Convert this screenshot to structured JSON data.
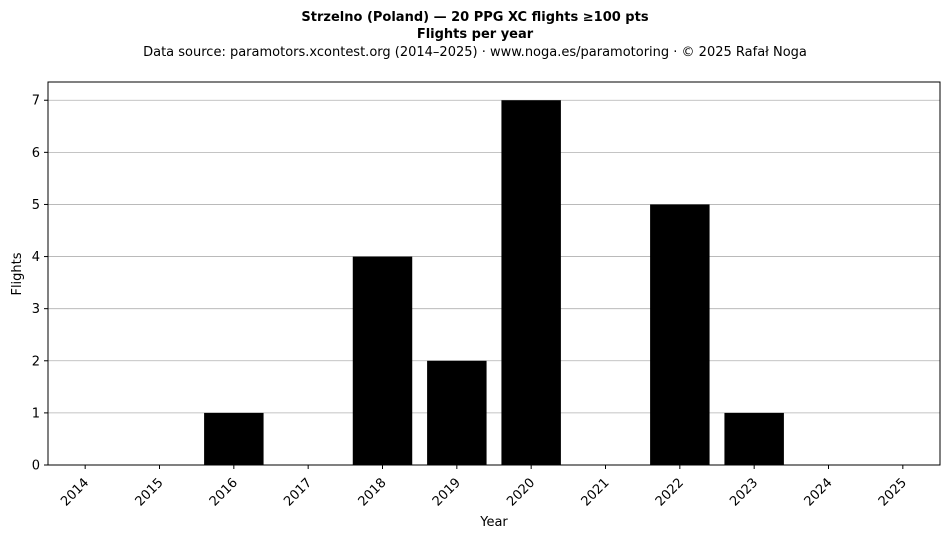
{
  "chart_data": {
    "type": "bar",
    "title": "Strzelno (Poland)  —  20 PPG XC flights ≥100 pts",
    "subtitle": "Flights per year",
    "source": "Data source: paramotors.xcontest.org (2014–2025)  ·  www.noga.es/paramotoring  ·  © 2025 Rafał Noga",
    "xlabel": "Year",
    "ylabel": "Flights",
    "categories": [
      "2014",
      "2015",
      "2016",
      "2017",
      "2018",
      "2019",
      "2020",
      "2021",
      "2022",
      "2023",
      "2024",
      "2025"
    ],
    "values": [
      0,
      0,
      1,
      0,
      4,
      2,
      7,
      0,
      5,
      1,
      0,
      0
    ],
    "yticks": [
      0,
      1,
      2,
      3,
      4,
      5,
      6,
      7
    ],
    "ylim": [
      0,
      7.35
    ],
    "grid": "y",
    "bar_color": "#000000"
  }
}
